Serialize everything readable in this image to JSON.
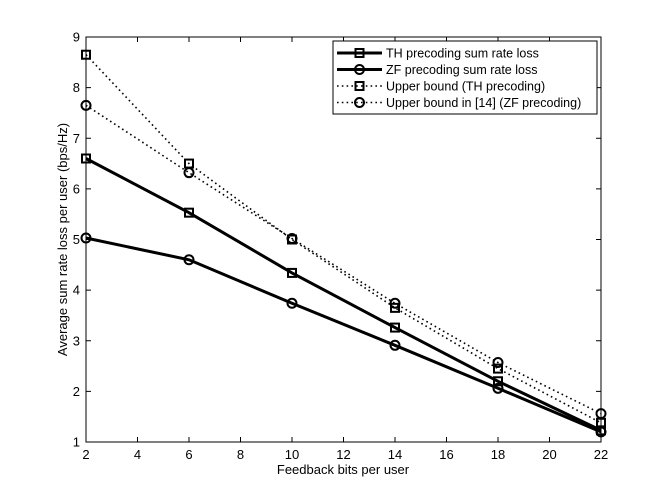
{
  "chart_data": {
    "type": "line",
    "title": "",
    "xlabel": "Feedback bits per user",
    "ylabel": "Average sum rate loss per user (bps/Hz)",
    "xlim": [
      2,
      22
    ],
    "ylim": [
      1,
      9
    ],
    "xticks": [
      2,
      4,
      6,
      8,
      10,
      12,
      14,
      16,
      18,
      20,
      22
    ],
    "yticks": [
      1,
      2,
      3,
      4,
      5,
      6,
      7,
      8,
      9
    ],
    "grid": false,
    "legend_position": "top-right",
    "series": [
      {
        "name": "TH precoding sum rate loss",
        "line": "solid",
        "marker": "square",
        "color": "#000000",
        "x": [
          2,
          6,
          10,
          14,
          18,
          22
        ],
        "y": [
          6.6,
          5.53,
          4.34,
          3.26,
          2.2,
          1.23
        ]
      },
      {
        "name": "ZF precoding sum rate loss",
        "line": "solid",
        "marker": "circle",
        "color": "#000000",
        "x": [
          2,
          6,
          10,
          14,
          18,
          22
        ],
        "y": [
          5.03,
          4.6,
          3.74,
          2.91,
          2.06,
          1.2
        ]
      },
      {
        "name": "Upper bound (TH precoding)",
        "line": "dotted",
        "marker": "square",
        "color": "#000000",
        "x": [
          2,
          6,
          10,
          14,
          18,
          22
        ],
        "y": [
          8.65,
          6.5,
          5.0,
          3.65,
          2.45,
          1.38
        ]
      },
      {
        "name": "Upper bound in [14] (ZF precoding)",
        "line": "dotted",
        "marker": "circle",
        "color": "#000000",
        "x": [
          2,
          6,
          10,
          14,
          18,
          22
        ],
        "y": [
          7.65,
          6.32,
          5.02,
          3.74,
          2.57,
          1.56
        ]
      }
    ]
  }
}
